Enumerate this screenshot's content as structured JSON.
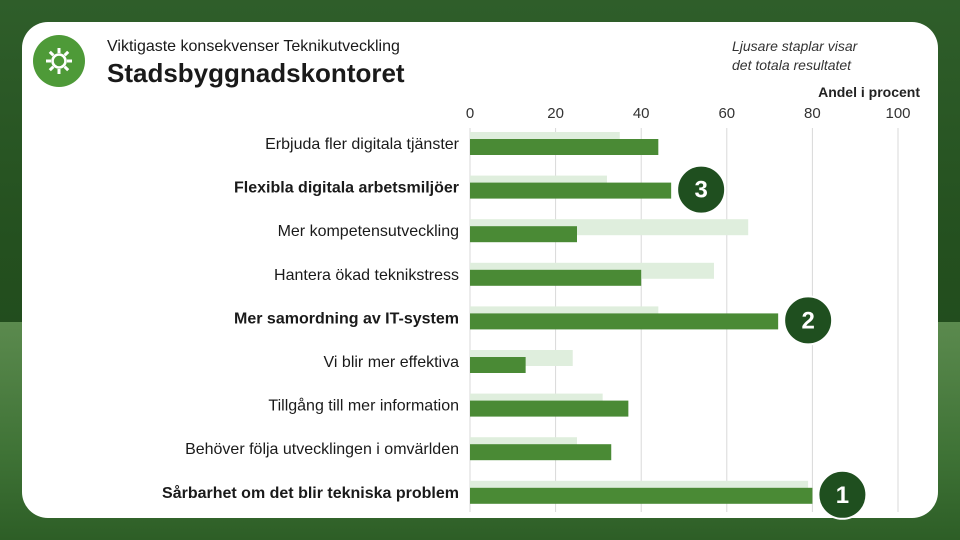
{
  "header": {
    "subtitle": "Viktigaste konsekvenser Teknikutveckling",
    "title": "Stadsbyggnadskontoret",
    "note_line1": "Ljusare staplar visar",
    "note_line2": "det totala resultatet",
    "logo_icon": "gear-icon"
  },
  "colors": {
    "dark_bar": "#4a8a35",
    "light_bar": "#dfeedd",
    "badge": "#1f4f1f",
    "grid": "#d9d9d9"
  },
  "chart_data": {
    "type": "bar",
    "orientation": "horizontal",
    "xlabel": "Andel i procent",
    "xlim": [
      0,
      100
    ],
    "xticks": [
      0,
      20,
      40,
      60,
      80,
      100
    ],
    "categories": [
      "Erbjuda fler digitala tjänster",
      "Flexibla digitala arbetsmiljöer",
      "Mer kompetensutveckling",
      "Hantera ökad teknikstress",
      "Mer samordning av IT-system",
      "Vi blir mer effektiva",
      "Tillgång till mer information",
      "Behöver följa utvecklingen i omvärlden",
      "Sårbarhet om det blir tekniska problem"
    ],
    "bold_categories": [
      1,
      4,
      8
    ],
    "series": [
      {
        "name": "Totalt",
        "values": [
          35,
          32,
          65,
          57,
          44,
          24,
          31,
          25,
          79
        ]
      },
      {
        "name": "Stadsbyggnadskontoret",
        "values": [
          44,
          47,
          25,
          40,
          72,
          13,
          37,
          33,
          80
        ]
      }
    ],
    "annotations": [
      {
        "label": "3",
        "category_index": 1
      },
      {
        "label": "2",
        "category_index": 4
      },
      {
        "label": "1",
        "category_index": 8
      }
    ]
  }
}
